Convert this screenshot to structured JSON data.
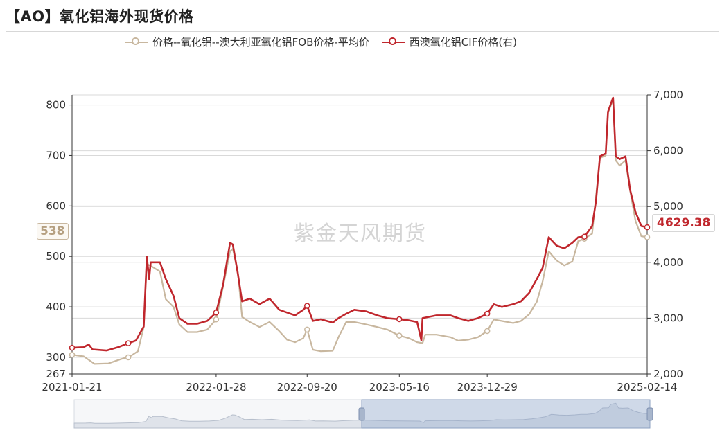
{
  "title": "【AO】氧化铝海外现货价格",
  "watermark": "紫金天风期货",
  "colors": {
    "left_series": "#c8b79f",
    "right_series": "#c0272d",
    "grid": "#d9d9d9",
    "axis": "#333333"
  },
  "chart_data": {
    "type": "line",
    "x_ticks": [
      "2021-01-21",
      "2022-01-28",
      "2022-09-20",
      "2023-05-16",
      "2023-12-29",
      "2025-02-14"
    ],
    "x_range": [
      "2021-01-21",
      "2025-02-14"
    ],
    "y_left": {
      "ticks": [
        267,
        300,
        400,
        500,
        600,
        700,
        800
      ],
      "range": [
        267,
        820
      ]
    },
    "y_right": {
      "ticks": [
        2000,
        3000,
        4000,
        5000,
        6000,
        7000
      ],
      "tick_labels": [
        "2,000",
        "3,000",
        "4,000",
        "5,000",
        "6,000",
        "7,000"
      ],
      "range": [
        2000,
        7000
      ]
    },
    "legend_position": "top",
    "grid": true,
    "series": [
      {
        "name": "价格--氧化铝--澳大利亚氧化铝FOB价格-平均价",
        "axis": "left",
        "color": "#c8b79f",
        "last_label": "538",
        "points": [
          [
            "2021-01-21",
            305
          ],
          [
            "2021-02-20",
            302
          ],
          [
            "2021-03-20",
            287
          ],
          [
            "2021-04-25",
            288
          ],
          [
            "2021-05-25",
            296
          ],
          [
            "2021-06-20",
            302
          ],
          [
            "2021-07-10",
            312
          ],
          [
            "2021-07-25",
            360
          ],
          [
            "2021-08-02",
            485
          ],
          [
            "2021-08-15",
            480
          ],
          [
            "2021-09-05",
            470
          ],
          [
            "2021-09-20",
            415
          ],
          [
            "2021-10-10",
            400
          ],
          [
            "2021-10-25",
            365
          ],
          [
            "2021-11-15",
            350
          ],
          [
            "2021-12-10",
            350
          ],
          [
            "2022-01-05",
            355
          ],
          [
            "2022-01-28",
            375
          ],
          [
            "2022-02-15",
            440
          ],
          [
            "2022-03-05",
            510
          ],
          [
            "2022-03-12",
            515
          ],
          [
            "2022-03-25",
            470
          ],
          [
            "2022-04-05",
            380
          ],
          [
            "2022-04-25",
            370
          ],
          [
            "2022-05-20",
            360
          ],
          [
            "2022-06-15",
            370
          ],
          [
            "2022-07-10",
            352
          ],
          [
            "2022-07-30",
            335
          ],
          [
            "2022-08-20",
            330
          ],
          [
            "2022-09-10",
            338
          ],
          [
            "2022-09-20",
            355
          ],
          [
            "2022-10-05",
            315
          ],
          [
            "2022-10-25",
            312
          ],
          [
            "2022-11-25",
            313
          ],
          [
            "2022-12-10",
            340
          ],
          [
            "2022-12-30",
            370
          ],
          [
            "2023-01-20",
            370
          ],
          [
            "2023-02-20",
            365
          ],
          [
            "2023-03-20",
            360
          ],
          [
            "2023-04-15",
            355
          ],
          [
            "2023-05-16",
            343
          ],
          [
            "2023-06-10",
            338
          ],
          [
            "2023-07-01",
            330
          ],
          [
            "2023-07-15",
            328
          ],
          [
            "2023-07-22",
            345
          ],
          [
            "2023-08-20",
            345
          ],
          [
            "2023-09-25",
            340
          ],
          [
            "2023-10-15",
            333
          ],
          [
            "2023-11-10",
            335
          ],
          [
            "2023-12-05",
            340
          ],
          [
            "2023-12-29",
            352
          ],
          [
            "2024-01-15",
            375
          ],
          [
            "2024-02-05",
            372
          ],
          [
            "2024-03-05",
            368
          ],
          [
            "2024-03-25",
            372
          ],
          [
            "2024-04-15",
            385
          ],
          [
            "2024-05-05",
            410
          ],
          [
            "2024-05-20",
            450
          ],
          [
            "2024-06-05",
            510
          ],
          [
            "2024-06-25",
            492
          ],
          [
            "2024-07-15",
            482
          ],
          [
            "2024-08-05",
            490
          ],
          [
            "2024-08-20",
            530
          ],
          [
            "2024-09-05",
            535
          ],
          [
            "2024-09-25",
            545
          ],
          [
            "2024-10-05",
            620
          ],
          [
            "2024-10-15",
            695
          ],
          [
            "2024-10-30",
            700
          ],
          [
            "2024-11-05",
            785
          ],
          [
            "2024-11-18",
            810
          ],
          [
            "2024-11-25",
            690
          ],
          [
            "2024-12-05",
            680
          ],
          [
            "2024-12-20",
            690
          ],
          [
            "2025-01-01",
            630
          ],
          [
            "2025-01-15",
            570
          ],
          [
            "2025-01-30",
            540
          ],
          [
            "2025-02-14",
            538
          ]
        ]
      },
      {
        "name": "西澳氧化铝CIF价格(右)",
        "axis": "right",
        "color": "#c0272d",
        "last_label": "4629.38",
        "points": [
          [
            "2021-01-21",
            2470
          ],
          [
            "2021-02-20",
            2480
          ],
          [
            "2021-03-05",
            2530
          ],
          [
            "2021-03-15",
            2440
          ],
          [
            "2021-04-20",
            2420
          ],
          [
            "2021-05-20",
            2480
          ],
          [
            "2021-06-15",
            2550
          ],
          [
            "2021-07-05",
            2600
          ],
          [
            "2021-07-25",
            2850
          ],
          [
            "2021-08-02",
            4100
          ],
          [
            "2021-08-08",
            3700
          ],
          [
            "2021-08-12",
            4000
          ],
          [
            "2021-09-05",
            4000
          ],
          [
            "2021-09-20",
            3700
          ],
          [
            "2021-10-10",
            3400
          ],
          [
            "2021-10-25",
            3000
          ],
          [
            "2021-11-15",
            2900
          ],
          [
            "2021-12-10",
            2900
          ],
          [
            "2022-01-05",
            2950
          ],
          [
            "2022-01-28",
            3100
          ],
          [
            "2022-02-15",
            3600
          ],
          [
            "2022-03-05",
            4350
          ],
          [
            "2022-03-12",
            4320
          ],
          [
            "2022-03-25",
            3800
          ],
          [
            "2022-04-05",
            3300
          ],
          [
            "2022-04-25",
            3350
          ],
          [
            "2022-05-20",
            3250
          ],
          [
            "2022-06-15",
            3350
          ],
          [
            "2022-07-10",
            3150
          ],
          [
            "2022-07-30",
            3100
          ],
          [
            "2022-08-20",
            3050
          ],
          [
            "2022-09-10",
            3150
          ],
          [
            "2022-09-20",
            3220
          ],
          [
            "2022-10-05",
            2950
          ],
          [
            "2022-10-25",
            2980
          ],
          [
            "2022-11-25",
            2920
          ],
          [
            "2022-12-10",
            3000
          ],
          [
            "2022-12-30",
            3080
          ],
          [
            "2023-01-20",
            3150
          ],
          [
            "2023-02-20",
            3120
          ],
          [
            "2023-03-20",
            3050
          ],
          [
            "2023-04-15",
            3000
          ],
          [
            "2023-05-16",
            2980
          ],
          [
            "2023-06-10",
            2960
          ],
          [
            "2023-07-01",
            2930
          ],
          [
            "2023-07-12",
            2600
          ],
          [
            "2023-07-15",
            3000
          ],
          [
            "2023-08-20",
            3050
          ],
          [
            "2023-09-25",
            3050
          ],
          [
            "2023-10-15",
            3000
          ],
          [
            "2023-11-10",
            2950
          ],
          [
            "2023-12-05",
            3000
          ],
          [
            "2023-12-29",
            3080
          ],
          [
            "2024-01-15",
            3250
          ],
          [
            "2024-02-05",
            3200
          ],
          [
            "2024-03-05",
            3250
          ],
          [
            "2024-03-25",
            3300
          ],
          [
            "2024-04-15",
            3450
          ],
          [
            "2024-05-05",
            3700
          ],
          [
            "2024-05-20",
            3900
          ],
          [
            "2024-06-05",
            4450
          ],
          [
            "2024-06-25",
            4300
          ],
          [
            "2024-07-15",
            4250
          ],
          [
            "2024-08-05",
            4350
          ],
          [
            "2024-08-20",
            4450
          ],
          [
            "2024-09-05",
            4460
          ],
          [
            "2024-09-25",
            4650
          ],
          [
            "2024-10-05",
            5100
          ],
          [
            "2024-10-15",
            5900
          ],
          [
            "2024-10-30",
            5950
          ],
          [
            "2024-11-05",
            6700
          ],
          [
            "2024-11-18",
            6950
          ],
          [
            "2024-11-25",
            5900
          ],
          [
            "2024-12-05",
            5850
          ],
          [
            "2024-12-20",
            5900
          ],
          [
            "2025-01-01",
            5300
          ],
          [
            "2025-01-15",
            4900
          ],
          [
            "2025-01-30",
            4650
          ],
          [
            "2025-02-14",
            4629.38
          ]
        ]
      }
    ],
    "markers": {
      "left": [
        [
          "2021-01-21",
          305
        ],
        [
          "2021-06-15",
          300
        ],
        [
          "2022-01-28",
          375
        ],
        [
          "2022-09-20",
          355
        ],
        [
          "2023-05-16",
          343
        ],
        [
          "2023-12-29",
          352
        ],
        [
          "2024-09-05",
          535
        ],
        [
          "2025-02-14",
          538
        ]
      ],
      "right": [
        [
          "2021-01-21",
          2470
        ],
        [
          "2021-06-15",
          2550
        ],
        [
          "2022-01-28",
          3100
        ],
        [
          "2022-09-20",
          3220
        ],
        [
          "2023-05-16",
          2980
        ],
        [
          "2023-12-29",
          3080
        ],
        [
          "2024-09-05",
          4460
        ],
        [
          "2025-02-14",
          4629.38
        ]
      ]
    }
  }
}
